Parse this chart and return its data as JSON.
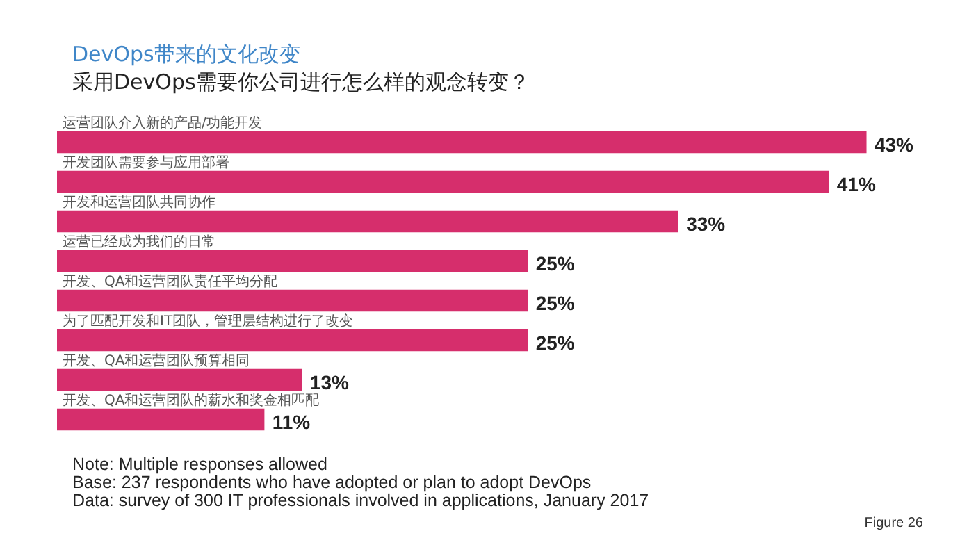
{
  "chart_data": {
    "type": "bar",
    "orientation": "horizontal",
    "title": "DevOps带来的文化改变",
    "subtitle": "采用DevOps需要你公司进行怎么样的观念转变？",
    "categories": [
      "运营团队介入新的产品/功能开发",
      "开发团队需要参与应用部署",
      "开发和运营团队共同协作",
      "运营已经成为我们的日常",
      "开发、QA和运营团队责任平均分配",
      "为了匹配开发和IT团队，管理层结构进行了改变",
      "开发、QA和运营团队预算相同",
      "开发、QA和运营团队的薪水和奖金相匹配"
    ],
    "values": [
      43,
      41,
      33,
      25,
      25,
      25,
      13,
      11
    ],
    "value_labels": [
      "43%",
      "41%",
      "33%",
      "25%",
      "25%",
      "25%",
      "13%",
      "11%"
    ],
    "color": "#d62e6c",
    "legend": false,
    "tick_labels": "y",
    "annotations": [
      "Note: Multiple responses allowed",
      "Base: 237 respondents who have adopted or plan to adopt DevOps",
      "Data: survey of 300 IT professionals involved in applications, January 2017",
      "Figure 26"
    ]
  }
}
